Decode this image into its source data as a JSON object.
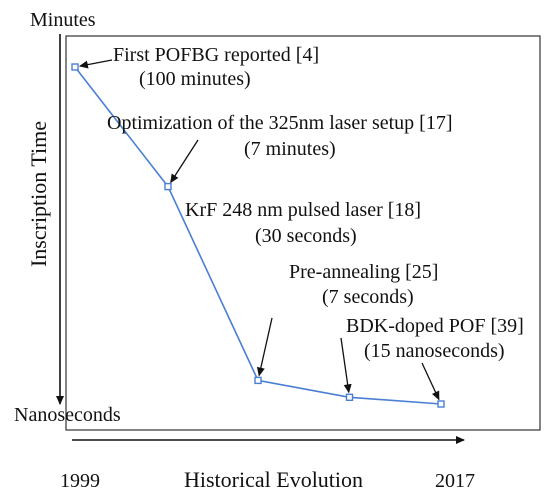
{
  "chart_data": {
    "type": "line",
    "y_top_label": "Minutes",
    "y_bottom_label": "Nanoseconds",
    "ylabel": "Inscription Time",
    "xlabel": "Historical Evolution",
    "x_start_label": "1999",
    "x_end_label": "2017",
    "series": [
      {
        "points": [
          {
            "order": 1,
            "relative_time": 1.0
          },
          {
            "order": 2,
            "relative_time": 0.645
          },
          {
            "order": 3,
            "relative_time": 0.07
          },
          {
            "order": 4,
            "relative_time": 0.02
          },
          {
            "order": 5,
            "relative_time": 0.0
          }
        ]
      }
    ],
    "annotations": [
      {
        "line1": "First POFBG reported [4]",
        "line2": "(100 minutes)"
      },
      {
        "line1": "Optimization of the 325nm laser setup [17]",
        "line2": "(7 minutes)"
      },
      {
        "line1": "KrF 248 nm pulsed laser [18]",
        "line2": "(30 seconds)"
      },
      {
        "line1": "Pre-annealing [25]",
        "line2": "(7 seconds)"
      },
      {
        "line1": "BDK-doped POF [39]",
        "line2": "(15 nanoseconds)"
      }
    ],
    "colors": {
      "series": "#4a7fd4",
      "frame": "#333333",
      "text": "#111111"
    }
  }
}
